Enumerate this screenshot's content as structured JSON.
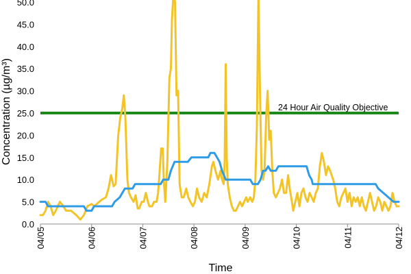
{
  "chart_data": {
    "type": "line",
    "xlabel": "Time",
    "ylabel": "Concentration (µg/m³)",
    "ylim": [
      0,
      50
    ],
    "yticks": [
      0,
      5,
      10,
      15,
      20,
      25,
      30,
      35,
      40,
      45,
      50
    ],
    "ytick_labels": [
      "0.0",
      "5.0",
      "10.0",
      "15.0",
      "20.0",
      "25.0",
      "30.0",
      "35.0",
      "40.0",
      "45.0",
      "50.0"
    ],
    "x_tick_labels": [
      "04/05",
      "04/06",
      "04/07",
      "04/08",
      "04/09",
      "04/10",
      "04/11",
      "04/12"
    ],
    "x_unit_note": "x values are in days, 0 = 04/05 and 7 = 04/12",
    "xlim": [
      0,
      7
    ],
    "grid": false,
    "legend": "none",
    "annotation": {
      "text": "24 Hour Air Quality Objective"
    },
    "threshold": {
      "value": 25,
      "color": "#1e8a1e"
    },
    "series": [
      {
        "color": "#f2c428",
        "points": [
          [
            0.0,
            2
          ],
          [
            0.05,
            2
          ],
          [
            0.1,
            3
          ],
          [
            0.15,
            5
          ],
          [
            0.2,
            4
          ],
          [
            0.25,
            2
          ],
          [
            0.3,
            3
          ],
          [
            0.38,
            5
          ],
          [
            0.45,
            4
          ],
          [
            0.5,
            3
          ],
          [
            0.6,
            3
          ],
          [
            0.7,
            2
          ],
          [
            0.78,
            1
          ],
          [
            0.85,
            2
          ],
          [
            0.92,
            4
          ],
          [
            1.0,
            4.5
          ],
          [
            1.05,
            4
          ],
          [
            1.15,
            5
          ],
          [
            1.2,
            5.5
          ],
          [
            1.28,
            6
          ],
          [
            1.33,
            8
          ],
          [
            1.38,
            11
          ],
          [
            1.43,
            8.5
          ],
          [
            1.47,
            9
          ],
          [
            1.52,
            20
          ],
          [
            1.56,
            24
          ],
          [
            1.6,
            26
          ],
          [
            1.63,
            29
          ],
          [
            1.66,
            24
          ],
          [
            1.7,
            10
          ],
          [
            1.73,
            7
          ],
          [
            1.77,
            6
          ],
          [
            1.82,
            5
          ],
          [
            1.86,
            6.5
          ],
          [
            1.9,
            3.5
          ],
          [
            1.93,
            3.5
          ],
          [
            1.98,
            5
          ],
          [
            2.02,
            5
          ],
          [
            2.06,
            7
          ],
          [
            2.1,
            5
          ],
          [
            2.13,
            4
          ],
          [
            2.18,
            4
          ],
          [
            2.22,
            5
          ],
          [
            2.27,
            5
          ],
          [
            2.3,
            7
          ],
          [
            2.33,
            12
          ],
          [
            2.36,
            17
          ],
          [
            2.39,
            17
          ],
          [
            2.41,
            10
          ],
          [
            2.44,
            5
          ],
          [
            2.48,
            14
          ],
          [
            2.52,
            33
          ],
          [
            2.55,
            35
          ],
          [
            2.57,
            46
          ],
          [
            2.6,
            52
          ],
          [
            2.63,
            50
          ],
          [
            2.66,
            29
          ],
          [
            2.69,
            30
          ],
          [
            2.72,
            9
          ],
          [
            2.76,
            6
          ],
          [
            2.8,
            6
          ],
          [
            2.85,
            8
          ],
          [
            2.89,
            6
          ],
          [
            2.93,
            5
          ],
          [
            2.98,
            4
          ],
          [
            3.02,
            5
          ],
          [
            3.06,
            8
          ],
          [
            3.1,
            6
          ],
          [
            3.15,
            5
          ],
          [
            3.2,
            7
          ],
          [
            3.25,
            6
          ],
          [
            3.3,
            9
          ],
          [
            3.35,
            13
          ],
          [
            3.38,
            14
          ],
          [
            3.42,
            12
          ],
          [
            3.47,
            10
          ],
          [
            3.52,
            12
          ],
          [
            3.55,
            10
          ],
          [
            3.58,
            9
          ],
          [
            3.6,
            14
          ],
          [
            3.62,
            36
          ],
          [
            3.64,
            15
          ],
          [
            3.66,
            9
          ],
          [
            3.7,
            6
          ],
          [
            3.74,
            4
          ],
          [
            3.78,
            3
          ],
          [
            3.82,
            3
          ],
          [
            3.86,
            4
          ],
          [
            3.9,
            5
          ],
          [
            3.94,
            4
          ],
          [
            3.98,
            5
          ],
          [
            4.02,
            6
          ],
          [
            4.05,
            5
          ],
          [
            4.1,
            6
          ],
          [
            4.14,
            5
          ],
          [
            4.17,
            6
          ],
          [
            4.2,
            10
          ],
          [
            4.23,
            22
          ],
          [
            4.26,
            52
          ],
          [
            4.29,
            30
          ],
          [
            4.32,
            12
          ],
          [
            4.35,
            10
          ],
          [
            4.38,
            12
          ],
          [
            4.41,
            24
          ],
          [
            4.44,
            30
          ],
          [
            4.47,
            19
          ],
          [
            4.5,
            21
          ],
          [
            4.53,
            12
          ],
          [
            4.56,
            7
          ],
          [
            4.6,
            6
          ],
          [
            4.64,
            7
          ],
          [
            4.68,
            8
          ],
          [
            4.72,
            10
          ],
          [
            4.76,
            7
          ],
          [
            4.8,
            7
          ],
          [
            4.84,
            11
          ],
          [
            4.87,
            8
          ],
          [
            4.9,
            6
          ],
          [
            4.94,
            3
          ],
          [
            4.98,
            5
          ],
          [
            5.02,
            7
          ],
          [
            5.06,
            4
          ],
          [
            5.1,
            7
          ],
          [
            5.14,
            8
          ],
          [
            5.18,
            6
          ],
          [
            5.22,
            5
          ],
          [
            5.26,
            7
          ],
          [
            5.3,
            6
          ],
          [
            5.34,
            5
          ],
          [
            5.38,
            7
          ],
          [
            5.42,
            8
          ],
          [
            5.46,
            13
          ],
          [
            5.5,
            16
          ],
          [
            5.54,
            14
          ],
          [
            5.58,
            11
          ],
          [
            5.62,
            13
          ],
          [
            5.66,
            12
          ],
          [
            5.72,
            10
          ],
          [
            5.76,
            8
          ],
          [
            5.8,
            5
          ],
          [
            5.84,
            4
          ],
          [
            5.88,
            6
          ],
          [
            5.92,
            7
          ],
          [
            5.96,
            8
          ],
          [
            6.0,
            5
          ],
          [
            6.04,
            7
          ],
          [
            6.08,
            4
          ],
          [
            6.12,
            6
          ],
          [
            6.16,
            5
          ],
          [
            6.2,
            6
          ],
          [
            6.24,
            4
          ],
          [
            6.28,
            6
          ],
          [
            6.32,
            4
          ],
          [
            6.36,
            3
          ],
          [
            6.4,
            5
          ],
          [
            6.44,
            7
          ],
          [
            6.48,
            5
          ],
          [
            6.52,
            3
          ],
          [
            6.56,
            4
          ],
          [
            6.6,
            6
          ],
          [
            6.64,
            5
          ],
          [
            6.68,
            3
          ],
          [
            6.72,
            5
          ],
          [
            6.76,
            4
          ],
          [
            6.8,
            3
          ],
          [
            6.84,
            4
          ],
          [
            6.88,
            7
          ],
          [
            6.92,
            5
          ],
          [
            6.96,
            4
          ],
          [
            7.0,
            4
          ]
        ]
      },
      {
        "color": "#2f9be6",
        "points": [
          [
            0.0,
            5
          ],
          [
            0.1,
            5
          ],
          [
            0.15,
            4
          ],
          [
            0.85,
            4
          ],
          [
            0.9,
            3
          ],
          [
            1.0,
            3
          ],
          [
            1.05,
            4
          ],
          [
            1.4,
            4
          ],
          [
            1.45,
            5
          ],
          [
            1.55,
            6
          ],
          [
            1.65,
            8
          ],
          [
            1.8,
            8
          ],
          [
            1.85,
            9
          ],
          [
            2.35,
            9
          ],
          [
            2.4,
            10
          ],
          [
            2.5,
            10
          ],
          [
            2.55,
            12
          ],
          [
            2.62,
            14
          ],
          [
            2.88,
            14
          ],
          [
            2.95,
            15
          ],
          [
            3.28,
            15
          ],
          [
            3.32,
            16
          ],
          [
            3.4,
            16
          ],
          [
            3.45,
            15
          ],
          [
            3.5,
            14
          ],
          [
            3.55,
            12
          ],
          [
            3.62,
            10
          ],
          [
            4.1,
            10
          ],
          [
            4.15,
            9
          ],
          [
            4.25,
            9
          ],
          [
            4.3,
            10
          ],
          [
            4.35,
            12
          ],
          [
            4.4,
            12
          ],
          [
            4.45,
            13
          ],
          [
            4.5,
            12
          ],
          [
            4.6,
            12
          ],
          [
            4.65,
            13
          ],
          [
            5.2,
            13
          ],
          [
            5.25,
            11
          ],
          [
            5.3,
            10
          ],
          [
            5.32,
            9
          ],
          [
            6.55,
            9
          ],
          [
            6.6,
            8
          ],
          [
            6.7,
            7
          ],
          [
            6.8,
            6
          ],
          [
            6.9,
            5
          ],
          [
            7.0,
            5
          ]
        ]
      }
    ]
  }
}
